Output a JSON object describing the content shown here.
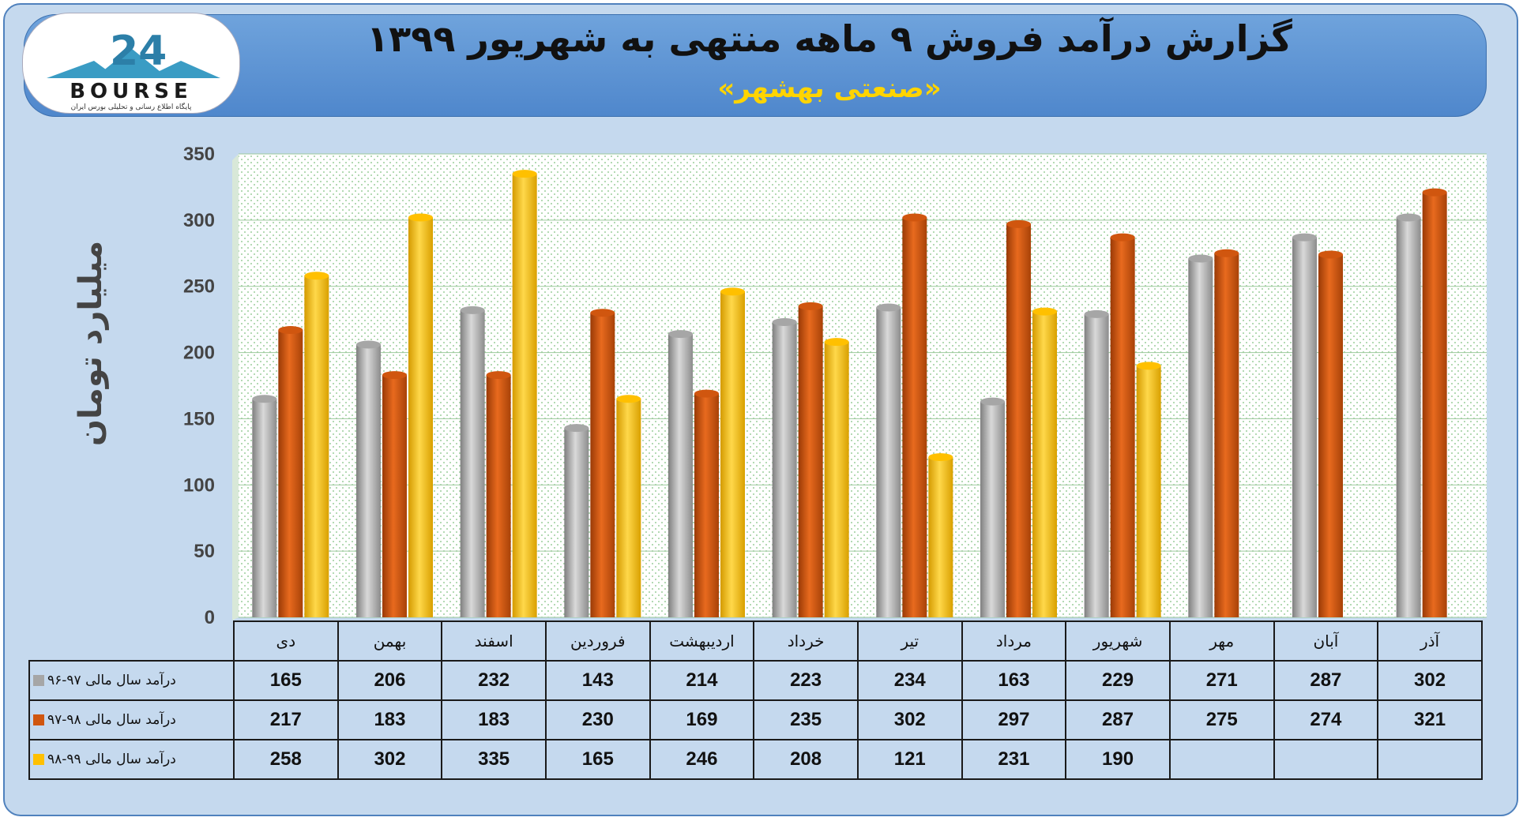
{
  "header": {
    "title": "گزارش درآمد فروش ۹ ماهه منتهی به شهریور ۱۳۹۹",
    "subtitle": "«صنعتی بهشهر»"
  },
  "logo": {
    "text": "BOURSE",
    "number": "24",
    "tagline": "پایگاه اطلاع رسانی و تحلیلی بورس ایران"
  },
  "colors": {
    "series1": "#a6a6a6",
    "series2": "#d0560f",
    "series3": "#ffc000"
  },
  "chart_data": {
    "type": "bar",
    "ylabel": "میلیارد تومان",
    "ylim": [
      0,
      350
    ],
    "yticks": [
      0,
      50,
      100,
      150,
      200,
      250,
      300,
      350
    ],
    "grid": true,
    "categories": [
      "دی",
      "بهمن",
      "اسفند",
      "فروردین",
      "اردیبهشت",
      "خرداد",
      "تیر",
      "مرداد",
      "شهریور",
      "مهر",
      "آبان",
      "آذر"
    ],
    "series": [
      {
        "name": "درآمد سال مالی ۹۷-۹۶",
        "values": [
          165,
          206,
          232,
          143,
          214,
          223,
          234,
          163,
          229,
          271,
          287,
          302
        ]
      },
      {
        "name": "درآمد سال مالی ۹۸-۹۷",
        "values": [
          217,
          183,
          183,
          230,
          169,
          235,
          302,
          297,
          287,
          275,
          274,
          321
        ]
      },
      {
        "name": "درآمد سال مالی ۹۹-۹۸",
        "values": [
          258,
          302,
          335,
          165,
          246,
          208,
          121,
          231,
          190,
          null,
          null,
          null
        ]
      }
    ]
  }
}
